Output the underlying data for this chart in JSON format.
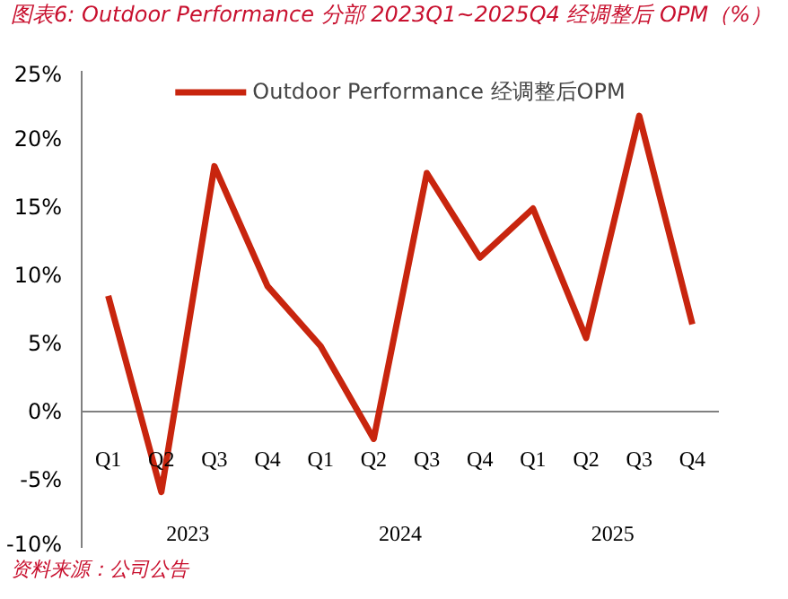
{
  "chart_data": {
    "type": "line",
    "title": "图表6:  Outdoor Performance 分部 2023Q1~2025Q4 经调整后 OPM（%）",
    "categories": [
      "Q1",
      "Q2",
      "Q3",
      "Q4",
      "Q1",
      "Q2",
      "Q3",
      "Q4",
      "Q1",
      "Q2",
      "Q3",
      "Q4"
    ],
    "series": [
      {
        "name": "Outdoor Performance 经调整后OPM",
        "color": "#c8250e",
        "values": [
          8.5,
          -5.9,
          18.0,
          9.2,
          4.8,
          -2.0,
          17.5,
          11.3,
          14.9,
          5.4,
          21.7,
          6.4
        ]
      }
    ],
    "ylim": [
      -10,
      25
    ],
    "yticks": [
      {
        "value": -10,
        "label": "-10%"
      },
      {
        "value": -5,
        "label": "-5%"
      },
      {
        "value": 0,
        "label": "0%"
      },
      {
        "value": 5,
        "label": "5%"
      },
      {
        "value": 10,
        "label": "10%"
      },
      {
        "value": 15,
        "label": "15%"
      },
      {
        "value": 20,
        "label": "20%"
      },
      {
        "value": 25,
        "label": "25%"
      }
    ],
    "annotations": [
      "2023",
      "2024",
      "2025",
      "资料来源：公司公告"
    ],
    "legend": "top",
    "grid": false,
    "marker": "none",
    "line_style": "solid"
  }
}
